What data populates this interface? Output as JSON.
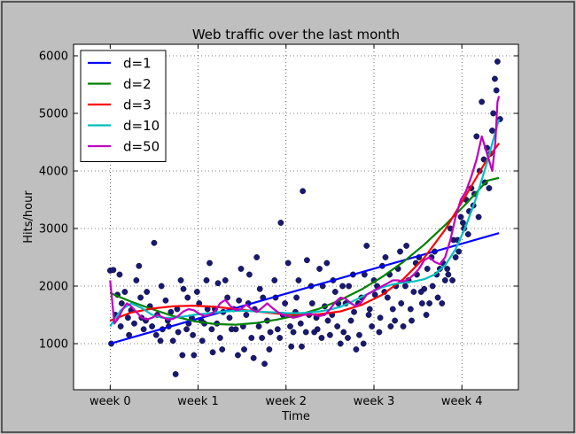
{
  "chart_data": {
    "type": "scatter",
    "title": "Web traffic over the last month",
    "xlabel": "Time",
    "ylabel": "Hits/hour",
    "xlim": [
      -70,
      780
    ],
    "ylim": [
      200,
      6200
    ],
    "x_tick_labels": [
      {
        "x": 0,
        "label": "week 0"
      },
      {
        "x": 168,
        "label": "week 1"
      },
      {
        "x": 336,
        "label": "week 2"
      },
      {
        "x": 504,
        "label": "week 3"
      },
      {
        "x": 672,
        "label": "week 4"
      }
    ],
    "y_ticks": [
      1000,
      2000,
      3000,
      4000,
      5000,
      6000
    ],
    "grid": true,
    "legend_position": "upper left",
    "scatter_color": "#191970",
    "points": [
      [
        0,
        2270
      ],
      [
        6,
        2280
      ],
      [
        14,
        1850
      ],
      [
        22,
        1700
      ],
      [
        40,
        1580
      ],
      [
        50,
        2100
      ],
      [
        60,
        1450
      ],
      [
        70,
        1900
      ],
      [
        80,
        1300
      ],
      [
        90,
        1500
      ],
      [
        100,
        1250
      ],
      [
        110,
        1400
      ],
      [
        120,
        1050
      ],
      [
        125,
        470
      ],
      [
        130,
        1200
      ],
      [
        140,
        1950
      ],
      [
        150,
        1350
      ],
      [
        160,
        800
      ],
      [
        170,
        1700
      ],
      [
        180,
        1350
      ],
      [
        190,
        2400
      ],
      [
        200,
        1600
      ],
      [
        210,
        1100
      ],
      [
        220,
        2100
      ],
      [
        228,
        1450
      ],
      [
        240,
        1250
      ],
      [
        250,
        2300
      ],
      [
        260,
        1500
      ],
      [
        270,
        1100
      ],
      [
        280,
        2500
      ],
      [
        290,
        1100
      ],
      [
        295,
        650
      ],
      [
        300,
        1400
      ],
      [
        320,
        1250
      ],
      [
        326,
        3100
      ],
      [
        340,
        2400
      ],
      [
        350,
        1200
      ],
      [
        360,
        2100
      ],
      [
        368,
        3650
      ],
      [
        380,
        1500
      ],
      [
        390,
        1200
      ],
      [
        400,
        2300
      ],
      [
        410,
        1650
      ],
      [
        420,
        1150
      ],
      [
        430,
        1900
      ],
      [
        440,
        1000
      ],
      [
        450,
        1700
      ],
      [
        460,
        1400
      ],
      [
        470,
        900
      ],
      [
        480,
        1800
      ],
      [
        490,
        2700
      ],
      [
        500,
        1300
      ],
      [
        510,
        2000
      ],
      [
        520,
        2350
      ],
      [
        530,
        1800
      ],
      [
        540,
        1600
      ],
      [
        550,
        2300
      ],
      [
        560,
        1300
      ],
      [
        570,
        2100
      ],
      [
        580,
        1900
      ],
      [
        590,
        2500
      ],
      [
        600,
        1950
      ],
      [
        610,
        1700
      ],
      [
        620,
        2600
      ],
      [
        630,
        2300
      ],
      [
        640,
        2100
      ],
      [
        650,
        3000
      ],
      [
        660,
        2500
      ],
      [
        670,
        3200
      ],
      [
        680,
        3500
      ],
      [
        690,
        3700
      ],
      [
        700,
        4600
      ],
      [
        710,
        5200
      ],
      [
        720,
        4400
      ],
      [
        735,
        5600
      ],
      [
        740,
        5900
      ],
      [
        745,
        4900
      ],
      [
        10,
        1500
      ],
      [
        20,
        1300
      ],
      [
        28,
        1900
      ],
      [
        34,
        1450
      ],
      [
        46,
        1350
      ],
      [
        55,
        2350
      ],
      [
        64,
        1250
      ],
      [
        76,
        1650
      ],
      [
        84,
        2750
      ],
      [
        96,
        1050
      ],
      [
        106,
        1750
      ],
      [
        116,
        1550
      ],
      [
        135,
        2100
      ],
      [
        146,
        1250
      ],
      [
        156,
        1450
      ],
      [
        166,
        1900
      ],
      [
        176,
        1050
      ],
      [
        186,
        1600
      ],
      [
        196,
        850
      ],
      [
        206,
        2050
      ],
      [
        216,
        1550
      ],
      [
        232,
        1250
      ],
      [
        246,
        1750
      ],
      [
        256,
        900
      ],
      [
        266,
        2200
      ],
      [
        276,
        1600
      ],
      [
        286,
        1950
      ],
      [
        306,
        1200
      ],
      [
        316,
        1800
      ],
      [
        330,
        1500
      ],
      [
        346,
        950
      ],
      [
        356,
        1800
      ],
      [
        364,
        1350
      ],
      [
        376,
        2450
      ],
      [
        386,
        1700
      ],
      [
        396,
        1250
      ],
      [
        406,
        2000
      ],
      [
        416,
        1400
      ],
      [
        426,
        2100
      ],
      [
        436,
        1700
      ],
      [
        446,
        1200
      ],
      [
        456,
        2000
      ],
      [
        466,
        1550
      ],
      [
        476,
        1150
      ],
      [
        486,
        2200
      ],
      [
        496,
        1600
      ],
      [
        506,
        1850
      ],
      [
        516,
        1450
      ],
      [
        526,
        2500
      ],
      [
        536,
        1300
      ],
      [
        546,
        2000
      ],
      [
        556,
        1700
      ],
      [
        566,
        2700
      ],
      [
        576,
        1400
      ],
      [
        586,
        2200
      ],
      [
        596,
        1700
      ],
      [
        606,
        2300
      ],
      [
        616,
        2000
      ],
      [
        626,
        1800
      ],
      [
        636,
        2400
      ],
      [
        646,
        2200
      ],
      [
        656,
        2800
      ],
      [
        666,
        2600
      ],
      [
        676,
        3000
      ],
      [
        686,
        3300
      ],
      [
        696,
        3600
      ],
      [
        706,
        4000
      ],
      [
        716,
        3800
      ],
      [
        726,
        4300
      ],
      [
        732,
        5000
      ],
      [
        2,
        1000
      ],
      [
        18,
        2200
      ],
      [
        36,
        1150
      ],
      [
        58,
        1800
      ],
      [
        68,
        1400
      ],
      [
        88,
        1150
      ],
      [
        98,
        2000
      ],
      [
        112,
        1300
      ],
      [
        128,
        1600
      ],
      [
        138,
        800
      ],
      [
        148,
        1800
      ],
      [
        158,
        1150
      ],
      [
        174,
        1400
      ],
      [
        184,
        2100
      ],
      [
        194,
        1250
      ],
      [
        204,
        1350
      ],
      [
        214,
        900
      ],
      [
        224,
        1800
      ],
      [
        236,
        1600
      ],
      [
        244,
        800
      ],
      [
        254,
        1300
      ],
      [
        264,
        1700
      ],
      [
        274,
        750
      ],
      [
        284,
        1300
      ],
      [
        292,
        1800
      ],
      [
        304,
        900
      ],
      [
        314,
        2100
      ],
      [
        324,
        1100
      ],
      [
        334,
        1700
      ],
      [
        344,
        1300
      ],
      [
        354,
        1550
      ],
      [
        366,
        950
      ],
      [
        374,
        1200
      ],
      [
        384,
        2000
      ],
      [
        394,
        1450
      ],
      [
        404,
        1100
      ],
      [
        414,
        2400
      ],
      [
        424,
        1500
      ],
      [
        434,
        1300
      ],
      [
        444,
        2000
      ],
      [
        454,
        1100
      ],
      [
        464,
        2200
      ],
      [
        474,
        1700
      ],
      [
        484,
        1000
      ],
      [
        494,
        1500
      ],
      [
        504,
        2100
      ],
      [
        514,
        1200
      ],
      [
        524,
        1900
      ],
      [
        534,
        2200
      ],
      [
        544,
        1400
      ],
      [
        554,
        2600
      ],
      [
        564,
        2000
      ],
      [
        574,
        1600
      ],
      [
        584,
        2400
      ],
      [
        594,
        1900
      ],
      [
        604,
        1500
      ],
      [
        614,
        2500
      ],
      [
        624,
        2200
      ],
      [
        634,
        1700
      ],
      [
        644,
        2300
      ],
      [
        654,
        2100
      ],
      [
        664,
        2800
      ],
      [
        674,
        3100
      ],
      [
        684,
        2900
      ],
      [
        694,
        3400
      ],
      [
        704,
        3200
      ],
      [
        714,
        4200
      ],
      [
        724,
        3700
      ],
      [
        730,
        4700
      ],
      [
        738,
        5400
      ]
    ],
    "series": [
      {
        "name": "d=1",
        "color": "#0000ff",
        "x": [
          0,
          743
        ],
        "values": [
          1000,
          2920
        ]
      },
      {
        "name": "d=2",
        "color": "#008000",
        "x": [
          0,
          40,
          80,
          120,
          160,
          200,
          240,
          280,
          320,
          360,
          400,
          440,
          480,
          520,
          560,
          600,
          640,
          680,
          720,
          743
        ],
        "values": [
          1880,
          1730,
          1600,
          1480,
          1390,
          1340,
          1330,
          1360,
          1420,
          1500,
          1610,
          1760,
          1940,
          2160,
          2420,
          2720,
          3060,
          3430,
          3830,
          3880
        ]
      },
      {
        "name": "d=3",
        "color": "#ff0000",
        "x": [
          0,
          40,
          80,
          120,
          160,
          200,
          240,
          280,
          320,
          360,
          400,
          440,
          480,
          520,
          560,
          600,
          640,
          680,
          720,
          743
        ],
        "values": [
          1400,
          1540,
          1610,
          1650,
          1660,
          1640,
          1600,
          1560,
          1520,
          1500,
          1510,
          1560,
          1670,
          1850,
          2120,
          2490,
          2980,
          3580,
          4200,
          4480
        ]
      },
      {
        "name": "d=10",
        "color": "#00bfbf",
        "x": [
          0,
          20,
          40,
          60,
          80,
          100,
          120,
          140,
          160,
          180,
          200,
          220,
          240,
          260,
          280,
          300,
          320,
          340,
          360,
          380,
          400,
          420,
          440,
          460,
          480,
          500,
          520,
          540,
          560,
          580,
          600,
          620,
          640,
          660,
          680,
          700,
          720,
          743
        ],
        "values": [
          1300,
          1580,
          1700,
          1620,
          1500,
          1450,
          1450,
          1470,
          1500,
          1520,
          1540,
          1560,
          1570,
          1570,
          1560,
          1550,
          1540,
          1530,
          1530,
          1540,
          1560,
          1590,
          1640,
          1720,
          1810,
          1900,
          1980,
          2030,
          2060,
          2080,
          2120,
          2200,
          2360,
          2640,
          3050,
          3550,
          4150,
          4900
        ]
      },
      {
        "name": "d=50",
        "color": "#bf00bf",
        "x": [
          0,
          8,
          16,
          24,
          32,
          40,
          50,
          60,
          70,
          80,
          90,
          100,
          110,
          120,
          130,
          140,
          150,
          160,
          170,
          180,
          190,
          200,
          210,
          220,
          230,
          240,
          250,
          260,
          270,
          280,
          290,
          300,
          310,
          320,
          330,
          340,
          350,
          360,
          370,
          380,
          390,
          400,
          410,
          420,
          430,
          440,
          450,
          460,
          470,
          480,
          490,
          500,
          510,
          520,
          530,
          540,
          550,
          560,
          570,
          580,
          590,
          600,
          610,
          620,
          630,
          640,
          650,
          660,
          670,
          680,
          690,
          700,
          710,
          720,
          730,
          736,
          740,
          743
        ],
        "values": [
          2100,
          1350,
          1450,
          1600,
          1700,
          1650,
          1550,
          1450,
          1420,
          1450,
          1500,
          1460,
          1420,
          1430,
          1480,
          1560,
          1600,
          1580,
          1520,
          1480,
          1500,
          1560,
          1700,
          1760,
          1650,
          1580,
          1600,
          1680,
          1600,
          1550,
          1620,
          1700,
          1620,
          1550,
          1500,
          1480,
          1450,
          1470,
          1500,
          1520,
          1500,
          1480,
          1500,
          1600,
          1720,
          1800,
          1780,
          1700,
          1650,
          1720,
          1850,
          1900,
          1950,
          2000,
          2050,
          2100,
          2100,
          2080,
          2120,
          2200,
          2300,
          2450,
          2500,
          2420,
          2380,
          2500,
          2800,
          3200,
          3500,
          3650,
          3900,
          4200,
          4600,
          4300,
          4000,
          4500,
          5200,
          5300
        ]
      }
    ]
  }
}
